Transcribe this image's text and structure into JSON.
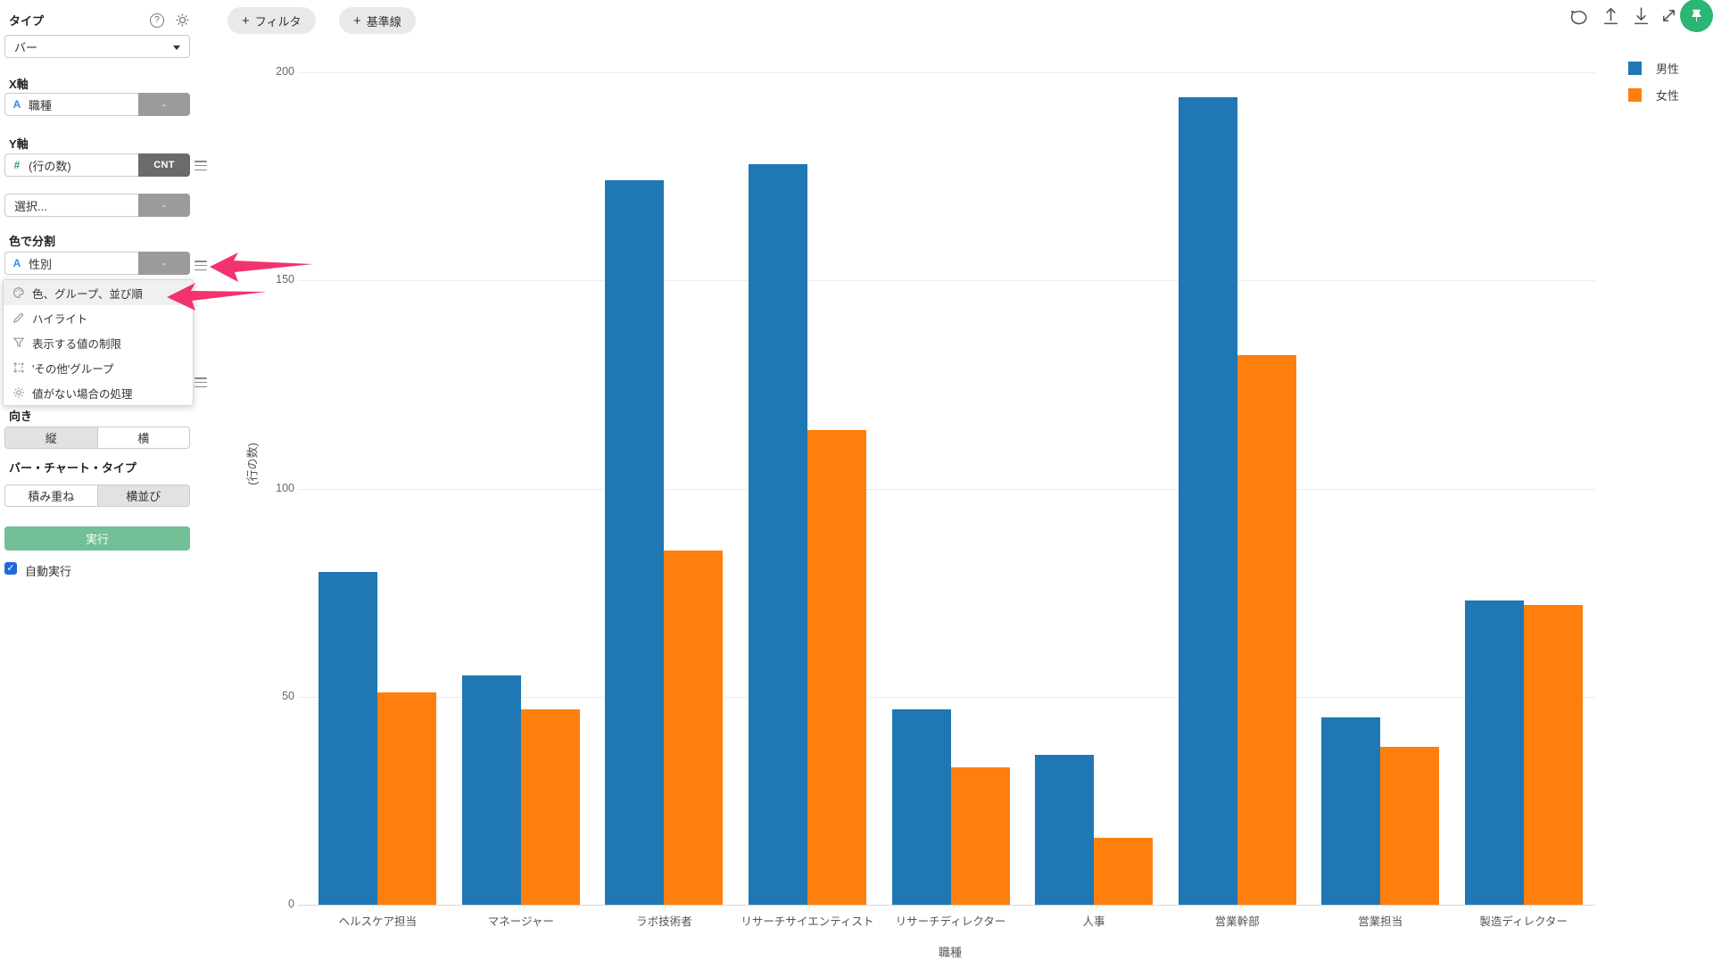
{
  "sidebar": {
    "type_label": "タイプ",
    "type_value": "バー",
    "x_axis_label": "X軸",
    "x_field": {
      "prefix": "A",
      "name": "職種",
      "badge": "-"
    },
    "y_axis_label": "Y軸",
    "y_field": {
      "prefix": "#",
      "name": "(行の数)",
      "badge": "CNT"
    },
    "select_row": {
      "placeholder": "選択...",
      "badge": "-"
    },
    "color_section_label": "色で分割",
    "color_field": {
      "prefix": "A",
      "name": "性別",
      "badge": "-"
    },
    "menu_items": [
      {
        "icon": "palette-icon",
        "label": "色、グループ、並び順",
        "highlighted": true
      },
      {
        "icon": "highlighter-icon",
        "label": "ハイライト",
        "highlighted": false
      },
      {
        "icon": "funnel-icon",
        "label": "表示する値の制限",
        "highlighted": false
      },
      {
        "icon": "others-group-icon",
        "label": "'その他'グループ",
        "highlighted": false
      },
      {
        "icon": "gear-icon",
        "label": "値がない場合の処理",
        "highlighted": false
      }
    ],
    "orientation_label": "向き",
    "orientation_options": [
      "縦",
      "横"
    ],
    "orientation_selected": "縦",
    "bar_type_label": "バー・チャート・タイプ",
    "bar_type_options": [
      "積み重ね",
      "横並び"
    ],
    "bar_type_selected": "横並び",
    "run_button": "実行",
    "run_check": "✓",
    "auto_run_label": "自動実行",
    "auto_run_checked": true,
    "help_icon_text": "?"
  },
  "toolbar": {
    "buttons": [
      {
        "plus": "+",
        "label": "フィルタ"
      },
      {
        "plus": "+",
        "label": "基準線"
      }
    ]
  },
  "chart_data": {
    "type": "bar",
    "grouping": "grouped",
    "title": "",
    "xlabel": "職種",
    "ylabel": "(行の数)",
    "categories": [
      "ヘルスケア担当",
      "マネージャー",
      "ラボ技術者",
      "リサーチサイエンティスト",
      "リサーチディレクター",
      "人事",
      "営業幹部",
      "営業担当",
      "製造ディレクター"
    ],
    "series": [
      {
        "name": "男性",
        "color": "#1f77b4",
        "values": [
          80,
          55,
          174,
          178,
          47,
          36,
          194,
          45,
          73
        ]
      },
      {
        "name": "女性",
        "color": "#ff7f0e",
        "values": [
          51,
          47,
          85,
          114,
          33,
          16,
          132,
          38,
          72
        ]
      }
    ],
    "ylim": [
      0,
      200
    ],
    "yticks": [
      0,
      50,
      100,
      150,
      200
    ],
    "grid": true,
    "legend_position": "top-right"
  },
  "colors": {
    "male_bar": "#1f77b4",
    "female_bar": "#ff7f0e",
    "annotation_arrow": "#f2336e",
    "run_button": "#72c095",
    "checkbox": "#2368d9",
    "avatar_bg": "#2bb673"
  }
}
